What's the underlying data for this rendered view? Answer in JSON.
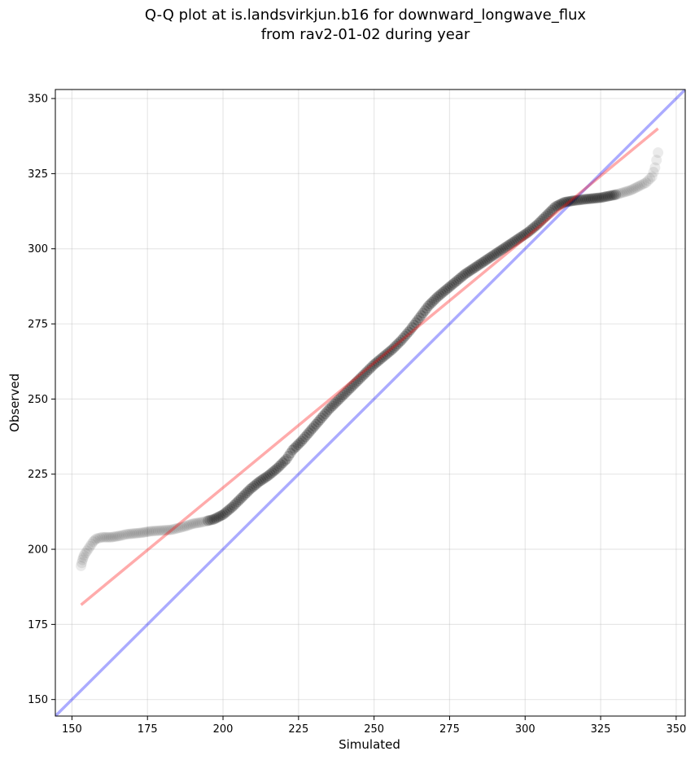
{
  "chart_data": {
    "type": "scatter",
    "title_lines": [
      "Q-Q plot at is.landsvirkjun.b16 for downward_longwave_flux",
      "from rav2-01-02 during year"
    ],
    "xlabel": "Simulated",
    "ylabel": "Observed",
    "xlim": [
      144.5,
      353
    ],
    "ylim": [
      144.5,
      353
    ],
    "xticks": [
      150,
      175,
      200,
      225,
      250,
      275,
      300,
      325,
      350
    ],
    "yticks": [
      150,
      175,
      200,
      225,
      250,
      275,
      300,
      325,
      350
    ],
    "grid": true,
    "colors": {
      "points": "#000000",
      "identity_line": "#0000ff",
      "fit_line": "#ff0000"
    },
    "identity_line": {
      "x": [
        144.5,
        353
      ],
      "y": [
        144.5,
        353
      ]
    },
    "fit_line": {
      "x": [
        153,
        344
      ],
      "y": [
        181.5,
        340
      ]
    },
    "quantiles": {
      "x": [
        153,
        153.5,
        154,
        155,
        156,
        157,
        158,
        160,
        163,
        166,
        168,
        173,
        176,
        183,
        187,
        190,
        193,
        197,
        200,
        203,
        206,
        209,
        212,
        215,
        218,
        221,
        223,
        226,
        229,
        232,
        235,
        238,
        241,
        244,
        247,
        250,
        253,
        256,
        259,
        262,
        265,
        268,
        271,
        274,
        277,
        280,
        283,
        286,
        289,
        292,
        295,
        298,
        301,
        304,
        307,
        310,
        313,
        316,
        320,
        325,
        330,
        335,
        338,
        340,
        342,
        343,
        344
      ],
      "y": [
        194.5,
        196.5,
        198,
        199.5,
        201,
        202.5,
        203.5,
        204,
        204,
        204.5,
        205,
        205.5,
        206,
        206.5,
        207.5,
        208.5,
        209,
        210,
        211.5,
        214,
        217,
        220,
        222.5,
        224.5,
        227,
        230,
        233,
        236,
        239.5,
        243,
        246.5,
        249.5,
        252.5,
        255.5,
        258.5,
        261.5,
        264,
        266.5,
        269.5,
        273,
        277,
        281,
        284,
        286.5,
        289,
        291.5,
        293.5,
        295.5,
        297.5,
        299.5,
        301.5,
        303.5,
        305.5,
        308,
        311,
        314,
        315.5,
        316,
        316.5,
        317,
        318,
        319.5,
        321,
        322,
        324,
        327,
        332
      ]
    }
  }
}
